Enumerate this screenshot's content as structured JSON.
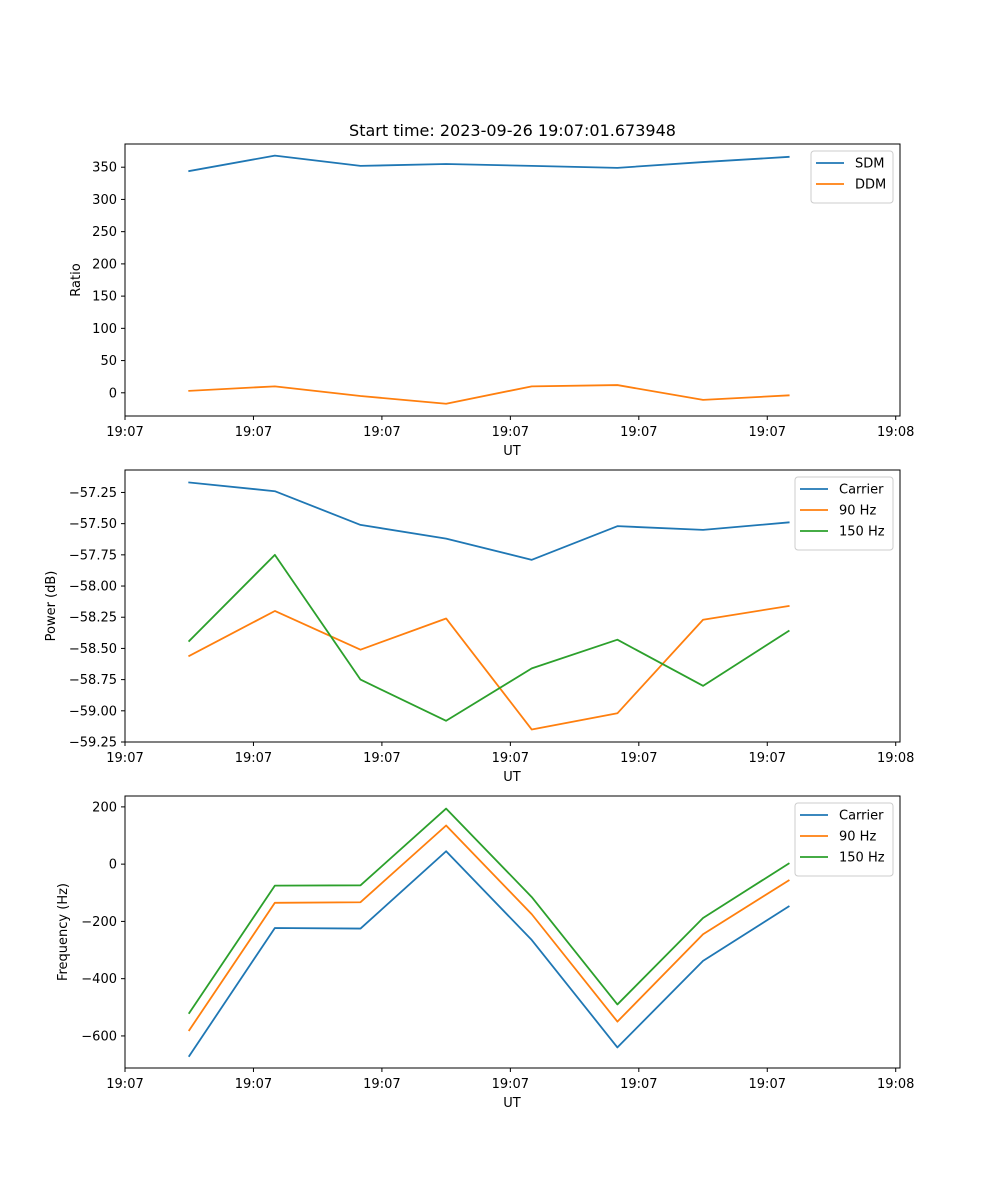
{
  "figure_title": "Start time: 2023-09-26 19:07:01.673948",
  "chart_data": [
    {
      "type": "line",
      "xlabel": "UT",
      "ylabel": "Ratio",
      "x": [
        0,
        1,
        2,
        3,
        4,
        5,
        6,
        7
      ],
      "xlim": [
        -0.75,
        8.3
      ],
      "x_ticks": [
        -0.75,
        0.75,
        2.25,
        3.75,
        5.25,
        6.75,
        8.25
      ],
      "x_tick_labels": [
        "19:07",
        "19:07",
        "19:07",
        "19:07",
        "19:07",
        "19:07",
        "19:08"
      ],
      "ylim": [
        -36,
        386
      ],
      "y_ticks": [
        0,
        50,
        100,
        150,
        200,
        250,
        300,
        350
      ],
      "y_tick_labels": [
        "0",
        "50",
        "100",
        "150",
        "200",
        "250",
        "300",
        "350"
      ],
      "legend_position": "top-right",
      "series": [
        {
          "name": "SDM",
          "color": "#1f77b4",
          "values": [
            344,
            368,
            352,
            355,
            352,
            349,
            358,
            366
          ]
        },
        {
          "name": "DDM",
          "color": "#ff7f0e",
          "values": [
            3,
            10,
            -5,
            -17,
            10,
            12,
            -11,
            -4
          ]
        }
      ]
    },
    {
      "type": "line",
      "xlabel": "UT",
      "ylabel": "Power (dB)",
      "x": [
        0,
        1,
        2,
        3,
        4,
        5,
        6,
        7
      ],
      "xlim": [
        -0.75,
        8.3
      ],
      "x_ticks": [
        -0.75,
        0.75,
        2.25,
        3.75,
        5.25,
        6.75,
        8.25
      ],
      "x_tick_labels": [
        "19:07",
        "19:07",
        "19:07",
        "19:07",
        "19:07",
        "19:07",
        "19:08"
      ],
      "ylim": [
        -59.25,
        -57.07
      ],
      "y_ticks": [
        -59.25,
        -59.0,
        -58.75,
        -58.5,
        -58.25,
        -58.0,
        -57.75,
        -57.5,
        -57.25
      ],
      "y_tick_labels": [
        "−59.25",
        "−59.00",
        "−58.75",
        "−58.50",
        "−58.25",
        "−58.00",
        "−57.75",
        "−57.50",
        "−57.25"
      ],
      "legend_position": "top-right",
      "series": [
        {
          "name": "Carrier",
          "color": "#1f77b4",
          "values": [
            -57.17,
            -57.24,
            -57.51,
            -57.62,
            -57.79,
            -57.52,
            -57.55,
            -57.49
          ]
        },
        {
          "name": "90 Hz",
          "color": "#ff7f0e",
          "values": [
            -58.56,
            -58.2,
            -58.51,
            -58.26,
            -59.15,
            -59.02,
            -58.27,
            -58.16
          ]
        },
        {
          "name": "150 Hz",
          "color": "#2ca02c",
          "values": [
            -58.44,
            -57.75,
            -58.75,
            -59.08,
            -58.66,
            -58.43,
            -58.8,
            -58.36
          ]
        }
      ]
    },
    {
      "type": "line",
      "xlabel": "UT",
      "ylabel": "Frequency (Hz)",
      "x": [
        0,
        1,
        2,
        3,
        4,
        5,
        6,
        7
      ],
      "xlim": [
        -0.75,
        8.3
      ],
      "x_ticks": [
        -0.75,
        0.75,
        2.25,
        3.75,
        5.25,
        6.75,
        8.25
      ],
      "x_tick_labels": [
        "19:07",
        "19:07",
        "19:07",
        "19:07",
        "19:07",
        "19:07",
        "19:08"
      ],
      "ylim": [
        -712,
        238
      ],
      "y_ticks": [
        -600,
        -400,
        -200,
        0,
        200
      ],
      "y_tick_labels": [
        "−600",
        "−400",
        "−200",
        "0",
        "200"
      ],
      "legend_position": "top-right",
      "series": [
        {
          "name": "Carrier",
          "color": "#1f77b4",
          "values": [
            -670,
            -223,
            -225,
            45,
            -265,
            -640,
            -338,
            -148
          ]
        },
        {
          "name": "90 Hz",
          "color": "#ff7f0e",
          "values": [
            -580,
            -135,
            -133,
            135,
            -175,
            -550,
            -245,
            -57
          ]
        },
        {
          "name": "150 Hz",
          "color": "#2ca02c",
          "values": [
            -520,
            -75,
            -74,
            194,
            -115,
            -490,
            -188,
            2
          ]
        }
      ]
    }
  ]
}
